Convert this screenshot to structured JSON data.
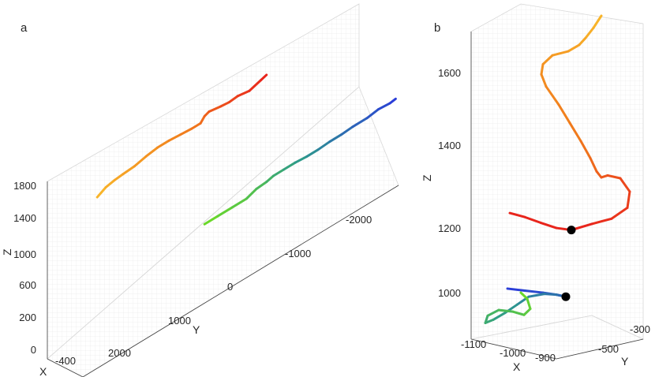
{
  "chart_data": [
    {
      "type": "line3d",
      "panel_label": "a",
      "xlabel": "X",
      "ylabel": "Y",
      "zlabel": "Z",
      "x_ticks": [
        "-400"
      ],
      "y_ticks": [
        "2000",
        "1000",
        "0",
        "-1000",
        "-2000"
      ],
      "z_ticks": [
        "1800",
        "1400",
        "1000",
        "600",
        "200",
        "0"
      ],
      "zlim": [
        0,
        1900
      ],
      "grid": true,
      "series": [
        {
          "color_gradient": [
            "#f8b42a",
            "#f07a1c",
            "#e8251c"
          ],
          "points": [
            {
              "y": 2350,
              "z": 1550
            },
            {
              "y": 2200,
              "z": 1600
            },
            {
              "y": 2050,
              "z": 1620
            },
            {
              "y": 1900,
              "z": 1630
            },
            {
              "y": 1700,
              "z": 1640
            },
            {
              "y": 1500,
              "z": 1670
            },
            {
              "y": 1300,
              "z": 1690
            },
            {
              "y": 1100,
              "z": 1690
            },
            {
              "y": 900,
              "z": 1680
            },
            {
              "y": 700,
              "z": 1670
            },
            {
              "y": 550,
              "z": 1670
            },
            {
              "y": 480,
              "z": 1720
            },
            {
              "y": 400,
              "z": 1740
            },
            {
              "y": 200,
              "z": 1720
            },
            {
              "y": 50,
              "z": 1710
            },
            {
              "y": -100,
              "z": 1720
            },
            {
              "y": -300,
              "z": 1700
            },
            {
              "y": -500,
              "z": 1740
            },
            {
              "y": -600,
              "z": 1760
            }
          ]
        },
        {
          "color_gradient": [
            "#6ad82a",
            "#2d9a8a",
            "#2b3ed8"
          ],
          "points": [
            {
              "y": 480,
              "z": 560
            },
            {
              "y": 250,
              "z": 560
            },
            {
              "y": 0,
              "z": 560
            },
            {
              "y": -250,
              "z": 560
            },
            {
              "y": -420,
              "z": 600
            },
            {
              "y": -600,
              "z": 610
            },
            {
              "y": -720,
              "z": 630
            },
            {
              "y": -900,
              "z": 630
            },
            {
              "y": -1100,
              "z": 630
            },
            {
              "y": -1300,
              "z": 620
            },
            {
              "y": -1500,
              "z": 620
            },
            {
              "y": -1700,
              "z": 630
            },
            {
              "y": -1900,
              "z": 630
            },
            {
              "y": -2100,
              "z": 640
            },
            {
              "y": -2350,
              "z": 640
            },
            {
              "y": -2550,
              "z": 660
            },
            {
              "y": -2750,
              "z": 650
            },
            {
              "y": -2850,
              "z": 660
            }
          ]
        }
      ]
    },
    {
      "type": "line3d",
      "panel_label": "b",
      "xlabel": "X",
      "ylabel": "Y",
      "zlabel": "Z",
      "x_ticks": [
        "-1100",
        "-1000",
        "-900"
      ],
      "y_ticks": [
        "-300",
        "-500"
      ],
      "z_ticks": [
        "1600",
        "1400",
        "1200",
        "1000"
      ],
      "zlim": [
        920,
        1720
      ],
      "grid": true,
      "series": [
        {
          "color_gradient": [
            "#f8b42a",
            "#f07a1c",
            "#e8251c"
          ],
          "marker_end": true,
          "points": [
            {
              "xs": 762,
              "z": 1720
            },
            {
              "xs": 752,
              "z": 1690
            },
            {
              "xs": 742,
              "z": 1665
            },
            {
              "xs": 734,
              "z": 1648
            },
            {
              "xs": 720,
              "z": 1632
            },
            {
              "xs": 700,
              "z": 1622
            },
            {
              "xs": 688,
              "z": 1600
            },
            {
              "xs": 686,
              "z": 1575
            },
            {
              "xs": 692,
              "z": 1545
            },
            {
              "xs": 708,
              "z": 1500
            },
            {
              "xs": 722,
              "z": 1455
            },
            {
              "xs": 736,
              "z": 1410
            },
            {
              "xs": 748,
              "z": 1368
            },
            {
              "xs": 756,
              "z": 1335
            },
            {
              "xs": 762,
              "z": 1320
            },
            {
              "xs": 770,
              "z": 1325
            },
            {
              "xs": 786,
              "z": 1318
            },
            {
              "xs": 798,
              "z": 1285
            },
            {
              "xs": 795,
              "z": 1245
            },
            {
              "xs": 775,
              "z": 1218
            },
            {
              "xs": 750,
              "z": 1205
            },
            {
              "xs": 724,
              "z": 1190
            }
          ],
          "tail": [
            {
              "xs": 724,
              "z": 1190
            },
            {
              "xs": 705,
              "z": 1195
            },
            {
              "xs": 685,
              "z": 1208
            },
            {
              "xs": 665,
              "z": 1222
            },
            {
              "xs": 646,
              "z": 1232
            }
          ]
        },
        {
          "color_gradient": [
            "#2b3ed8",
            "#2d9a8a",
            "#6ad82a"
          ],
          "marker_end": true,
          "points": [
            {
              "xs": 643,
              "z": 1045
            },
            {
              "xs": 665,
              "z": 1040
            },
            {
              "xs": 688,
              "z": 1035
            },
            {
              "xs": 705,
              "z": 1030
            },
            {
              "xs": 717,
              "z": 1025
            },
            {
              "xs": 705,
              "z": 1030
            },
            {
              "xs": 690,
              "z": 1032
            },
            {
              "xs": 670,
              "z": 1025
            },
            {
              "xs": 655,
              "z": 1005
            },
            {
              "xs": 640,
              "z": 985
            },
            {
              "xs": 625,
              "z": 968
            },
            {
              "xs": 615,
              "z": 960
            },
            {
              "xs": 618,
              "z": 978
            },
            {
              "xs": 632,
              "z": 992
            },
            {
              "xs": 650,
              "z": 988
            },
            {
              "xs": 664,
              "z": 980
            },
            {
              "xs": 672,
              "z": 995
            },
            {
              "xs": 668,
              "z": 1020
            },
            {
              "xs": 660,
              "z": 1035
            }
          ]
        }
      ]
    }
  ]
}
